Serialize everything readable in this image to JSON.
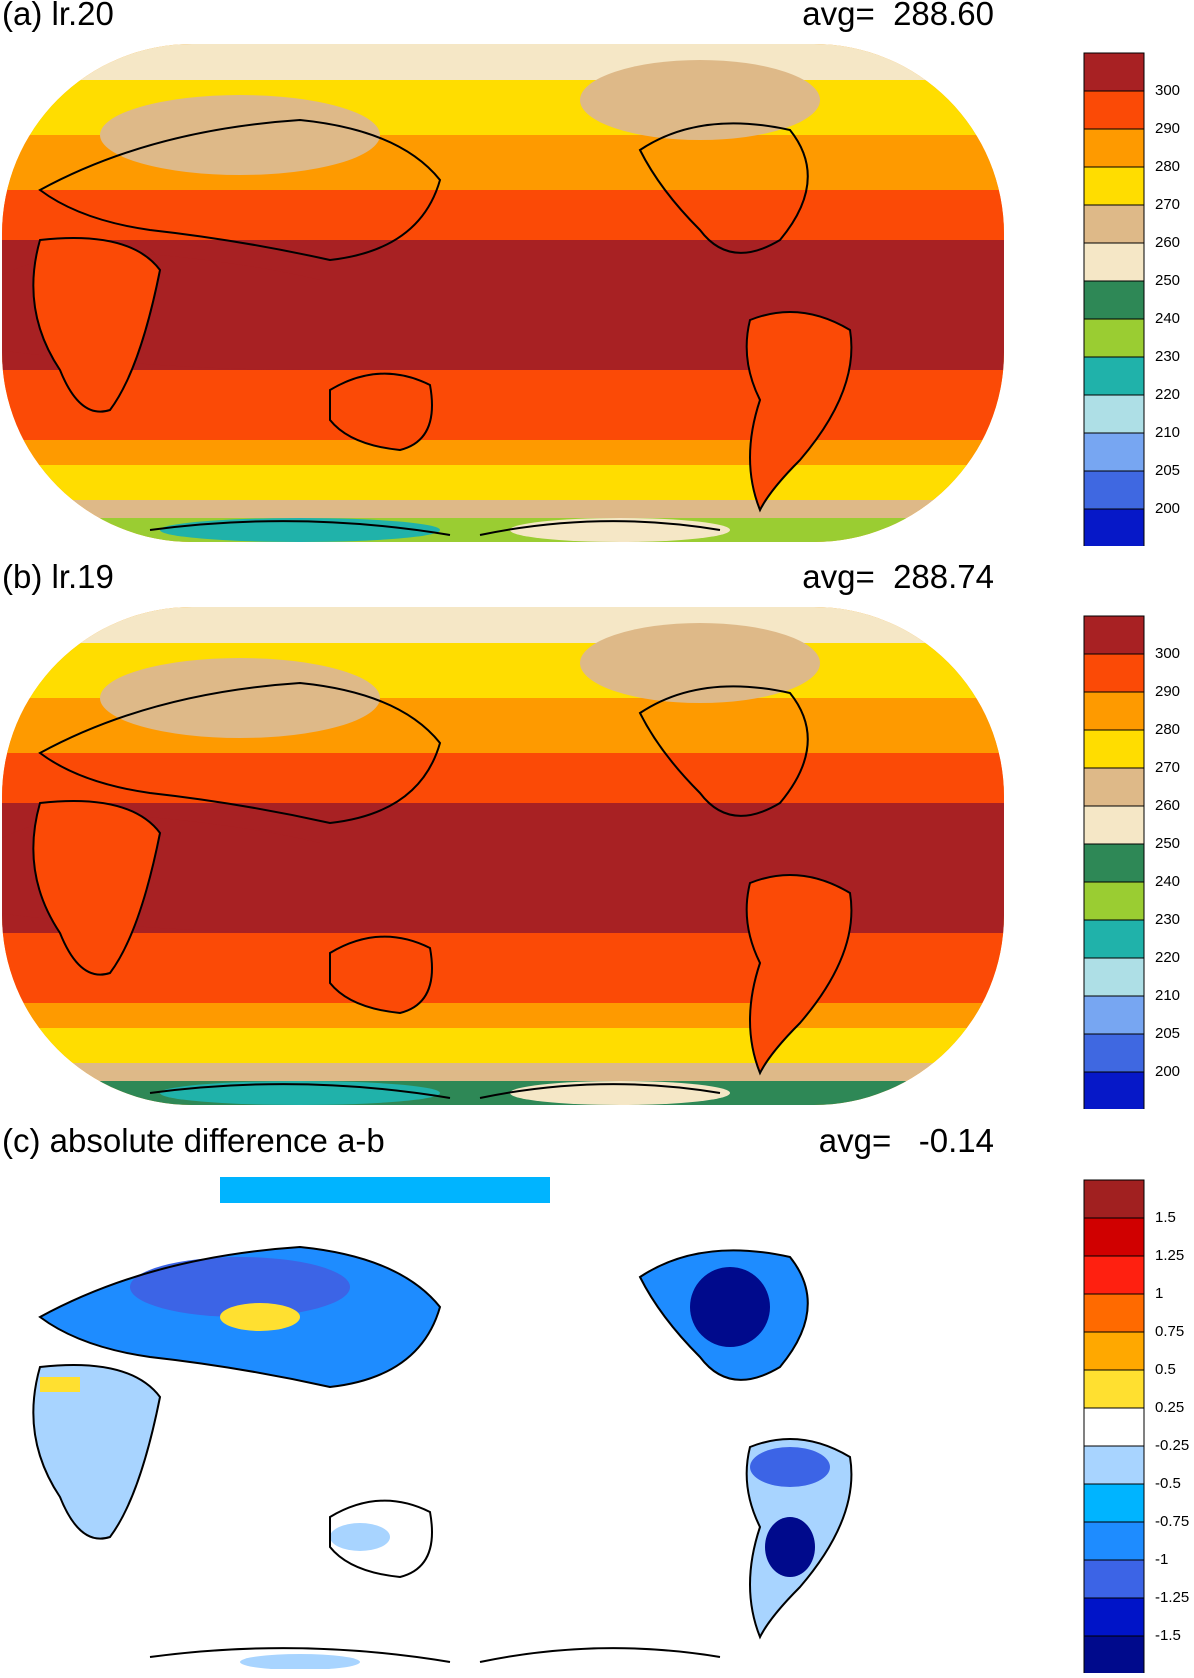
{
  "panels": [
    {
      "id": "a",
      "title": "(a) lr.20",
      "avg": "avg=  288.60",
      "colorbar": {
        "labels": [
          "300",
          "290",
          "280",
          "270",
          "260",
          "250",
          "240",
          "230",
          "220",
          "210",
          "205",
          "200"
        ],
        "colors": [
          "#A82123",
          "#FB4A06",
          "#FE9A00",
          "#FFDD00",
          "#DEB988",
          "#F5E7C6",
          "#2E8856",
          "#9ACD32",
          "#20B2AA",
          "#AEDFE6",
          "#77A6F2",
          "#3F68E1",
          "#0618C8"
        ]
      }
    },
    {
      "id": "b",
      "title": "(b) lr.19",
      "avg": "avg=  288.74",
      "colorbar": {
        "labels": [
          "300",
          "290",
          "280",
          "270",
          "260",
          "250",
          "240",
          "230",
          "220",
          "210",
          "205",
          "200"
        ],
        "colors": [
          "#A82123",
          "#FB4A06",
          "#FE9A00",
          "#FFDD00",
          "#DEB988",
          "#F5E7C6",
          "#2E8856",
          "#9ACD32",
          "#20B2AA",
          "#AEDFE6",
          "#77A6F2",
          "#3F68E1",
          "#0618C8"
        ]
      }
    },
    {
      "id": "c",
      "title": "(c) absolute difference a-b",
      "avg": "avg=   -0.14",
      "colorbar": {
        "labels": [
          "1.5",
          "1.25",
          "1",
          "0.75",
          "0.5",
          "0.25",
          "-0.25",
          "-0.5",
          "-0.75",
          "-1",
          "-1.25",
          "-1.5"
        ],
        "colors": [
          "#A12020",
          "#D00000",
          "#FF2010",
          "#FF6A00",
          "#FFA800",
          "#FFE030",
          "#FFFFFF",
          "#A8D4FF",
          "#00B4FF",
          "#1E8CFF",
          "#3C64E6",
          "#0014C8",
          "#000A8C"
        ]
      }
    }
  ]
}
